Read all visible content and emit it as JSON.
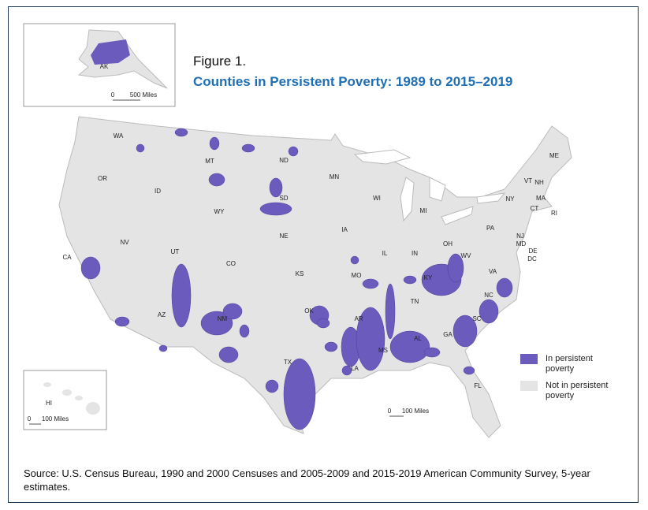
{
  "figure_label": "Figure 1.",
  "title": "Counties in Persistent Poverty: 1989 to 2015–2019",
  "alaska": {
    "label": "AK",
    "scale_zero": "0",
    "scale_distance": "500 Miles"
  },
  "hawaii": {
    "label": "HI",
    "scale_zero": "0",
    "scale_distance": "100 Miles"
  },
  "scale": {
    "zero": "0",
    "distance": "100 Miles"
  },
  "states": [
    "WA",
    "OR",
    "CA",
    "NV",
    "ID",
    "MT",
    "WY",
    "UT",
    "AZ",
    "CO",
    "NM",
    "ND",
    "SD",
    "NE",
    "KS",
    "OK",
    "TX",
    "MN",
    "IA",
    "MO",
    "AR",
    "LA",
    "WI",
    "IL",
    "MI",
    "IN",
    "OH",
    "KY",
    "TN",
    "MS",
    "AL",
    "GA",
    "FL",
    "SC",
    "NC",
    "VA",
    "WV",
    "PA",
    "NY",
    "VT",
    "NH",
    "ME",
    "MA",
    "CT",
    "RI",
    "NJ",
    "DE",
    "MD",
    "DC"
  ],
  "legend": [
    {
      "label": "In persistent poverty",
      "color": "#6a5bbd"
    },
    {
      "label": "Not in persistent poverty",
      "color": "#e4e4e4"
    }
  ],
  "source": "Source: U.S. Census Bureau, 1990 and 2000 Censuses and 2005-2009 and 2015-2019 American Community Survey, 5-year estimates."
}
